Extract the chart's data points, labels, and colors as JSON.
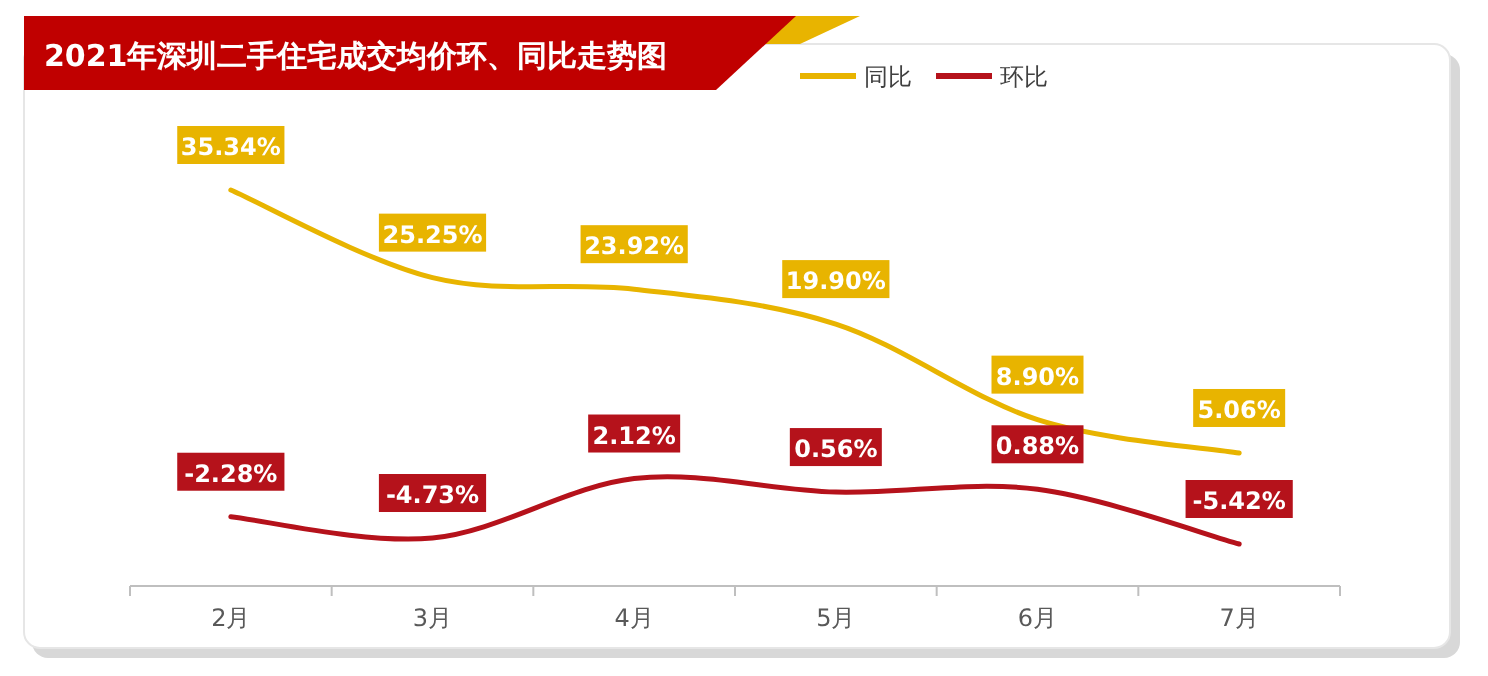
{
  "chart_data": {
    "type": "line",
    "title": "2021年深圳二手住宅成交均价环、同比走势图",
    "categories": [
      "2月",
      "3月",
      "4月",
      "5月",
      "6月",
      "7月"
    ],
    "legend": "top right",
    "series": [
      {
        "name": "同比",
        "color": "#e8b400",
        "values": [
          35.34,
          25.25,
          23.92,
          19.9,
          8.9,
          5.06
        ],
        "value_labels": [
          "35.34%",
          "25.25%",
          "23.92%",
          "19.90%",
          "8.90%",
          "5.06%"
        ]
      },
      {
        "name": "环比",
        "color": "#b5121b",
        "values": [
          -2.28,
          -4.73,
          2.12,
          0.56,
          0.88,
          -5.42
        ],
        "value_labels": [
          "-2.28%",
          "-4.73%",
          "2.12%",
          "0.56%",
          "0.88%",
          "-5.42%"
        ]
      }
    ]
  }
}
